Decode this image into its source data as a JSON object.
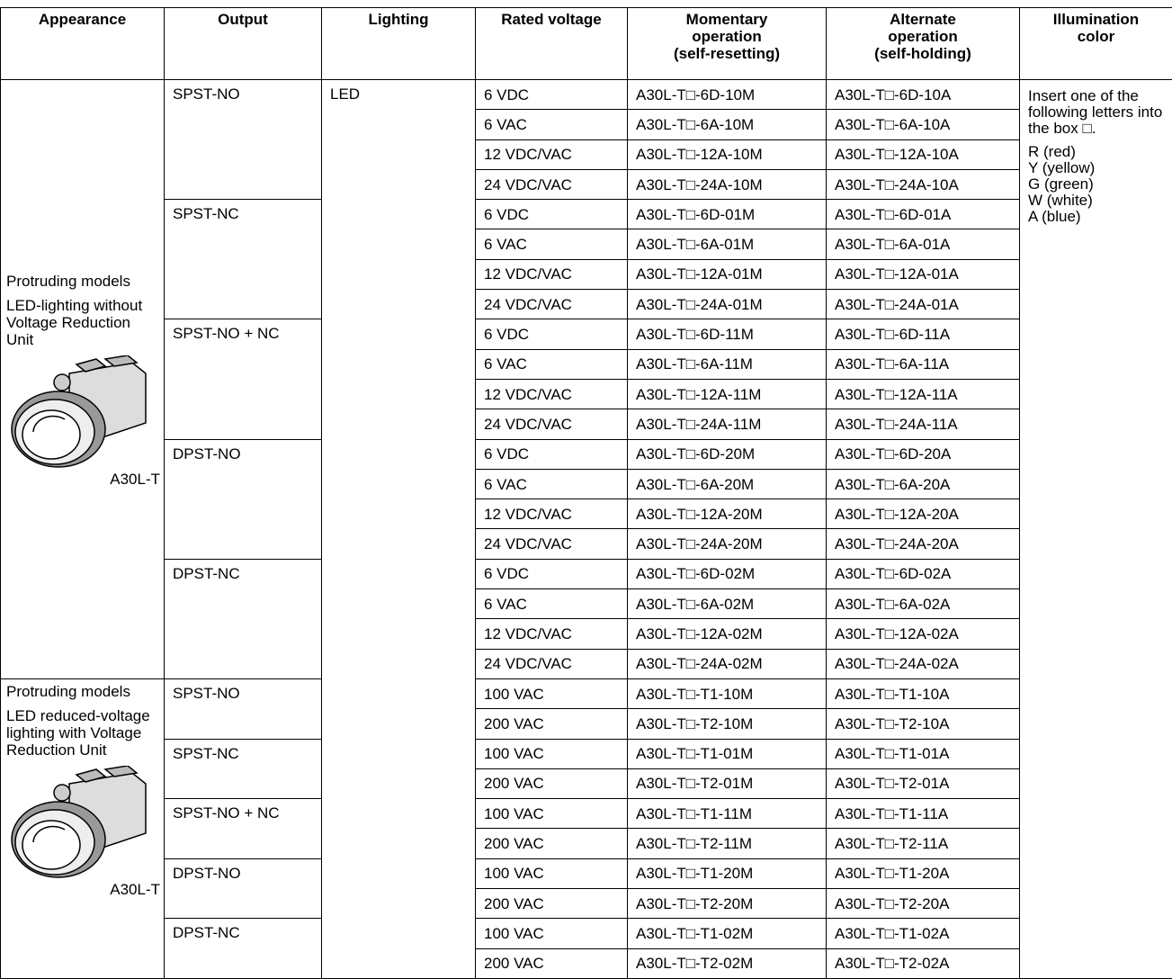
{
  "header": {
    "columns": [
      [
        "Appearance"
      ],
      [
        "Output"
      ],
      [
        "Lighting"
      ],
      [
        "Rated voltage"
      ],
      [
        "Momentary",
        "operation",
        "(self-resetting)"
      ],
      [
        "Alternate",
        "operation",
        "(self-holding)"
      ],
      [
        "Illumination",
        "color"
      ]
    ]
  },
  "lighting": "LED",
  "illumination": {
    "instruction": "Insert one of the following letters into the box □.",
    "colors": [
      "R (red)",
      "Y (yellow)",
      "G (green)",
      "W (white)",
      "A (blue)"
    ]
  },
  "groups": [
    {
      "appearance": [
        "Protruding models",
        "LED-lighting without Voltage Reduction Unit"
      ],
      "model": "A30L-T",
      "outputs": [
        {
          "name": "SPST-NO",
          "rows": [
            [
              "6 VDC",
              "A30L-T□-6D-10M",
              "A30L-T□-6D-10A"
            ],
            [
              "6 VAC",
              "A30L-T□-6A-10M",
              "A30L-T□-6A-10A"
            ],
            [
              "12 VDC/VAC",
              "A30L-T□-12A-10M",
              "A30L-T□-12A-10A"
            ],
            [
              "24 VDC/VAC",
              "A30L-T□-24A-10M",
              "A30L-T□-24A-10A"
            ]
          ]
        },
        {
          "name": "SPST-NC",
          "rows": [
            [
              "6 VDC",
              "A30L-T□-6D-01M",
              "A30L-T□-6D-01A"
            ],
            [
              "6 VAC",
              "A30L-T□-6A-01M",
              "A30L-T□-6A-01A"
            ],
            [
              "12 VDC/VAC",
              "A30L-T□-12A-01M",
              "A30L-T□-12A-01A"
            ],
            [
              "24 VDC/VAC",
              "A30L-T□-24A-01M",
              "A30L-T□-24A-01A"
            ]
          ]
        },
        {
          "name": "SPST-NO + NC",
          "rows": [
            [
              "6 VDC",
              "A30L-T□-6D-11M",
              "A30L-T□-6D-11A"
            ],
            [
              "6 VAC",
              "A30L-T□-6A-11M",
              "A30L-T□-6A-11A"
            ],
            [
              "12 VDC/VAC",
              "A30L-T□-12A-11M",
              "A30L-T□-12A-11A"
            ],
            [
              "24 VDC/VAC",
              "A30L-T□-24A-11M",
              "A30L-T□-24A-11A"
            ]
          ]
        },
        {
          "name": "DPST-NO",
          "rows": [
            [
              "6 VDC",
              "A30L-T□-6D-20M",
              "A30L-T□-6D-20A"
            ],
            [
              "6 VAC",
              "A30L-T□-6A-20M",
              "A30L-T□-6A-20A"
            ],
            [
              "12 VDC/VAC",
              "A30L-T□-12A-20M",
              "A30L-T□-12A-20A"
            ],
            [
              "24 VDC/VAC",
              "A30L-T□-24A-20M",
              "A30L-T□-24A-20A"
            ]
          ]
        },
        {
          "name": "DPST-NC",
          "rows": [
            [
              "6 VDC",
              "A30L-T□-6D-02M",
              "A30L-T□-6D-02A"
            ],
            [
              "6 VAC",
              "A30L-T□-6A-02M",
              "A30L-T□-6A-02A"
            ],
            [
              "12 VDC/VAC",
              "A30L-T□-12A-02M",
              "A30L-T□-12A-02A"
            ],
            [
              "24 VDC/VAC",
              "A30L-T□-24A-02M",
              "A30L-T□-24A-02A"
            ]
          ]
        }
      ]
    },
    {
      "appearance": [
        "Protruding models",
        "LED reduced-voltage lighting with Voltage Reduction Unit"
      ],
      "model": "A30L-T",
      "outputs": [
        {
          "name": "SPST-NO",
          "rows": [
            [
              "100 VAC",
              "A30L-T□-T1-10M",
              "A30L-T□-T1-10A"
            ],
            [
              "200 VAC",
              "A30L-T□-T2-10M",
              "A30L-T□-T2-10A"
            ]
          ]
        },
        {
          "name": "SPST-NC",
          "rows": [
            [
              "100 VAC",
              "A30L-T□-T1-01M",
              "A30L-T□-T1-01A"
            ],
            [
              "200 VAC",
              "A30L-T□-T2-01M",
              "A30L-T□-T2-01A"
            ]
          ]
        },
        {
          "name": "SPST-NO + NC",
          "rows": [
            [
              "100 VAC",
              "A30L-T□-T1-11M",
              "A30L-T□-T1-11A"
            ],
            [
              "200 VAC",
              "A30L-T□-T2-11M",
              "A30L-T□-T2-11A"
            ]
          ]
        },
        {
          "name": "DPST-NO",
          "rows": [
            [
              "100 VAC",
              "A30L-T□-T1-20M",
              "A30L-T□-T1-20A"
            ],
            [
              "200 VAC",
              "A30L-T□-T2-20M",
              "A30L-T□-T2-20A"
            ]
          ]
        },
        {
          "name": "DPST-NC",
          "rows": [
            [
              "100 VAC",
              "A30L-T□-T1-02M",
              "A30L-T□-T1-02A"
            ],
            [
              "200 VAC",
              "A30L-T□-T2-02M",
              "A30L-T□-T2-02A"
            ]
          ]
        }
      ]
    }
  ]
}
